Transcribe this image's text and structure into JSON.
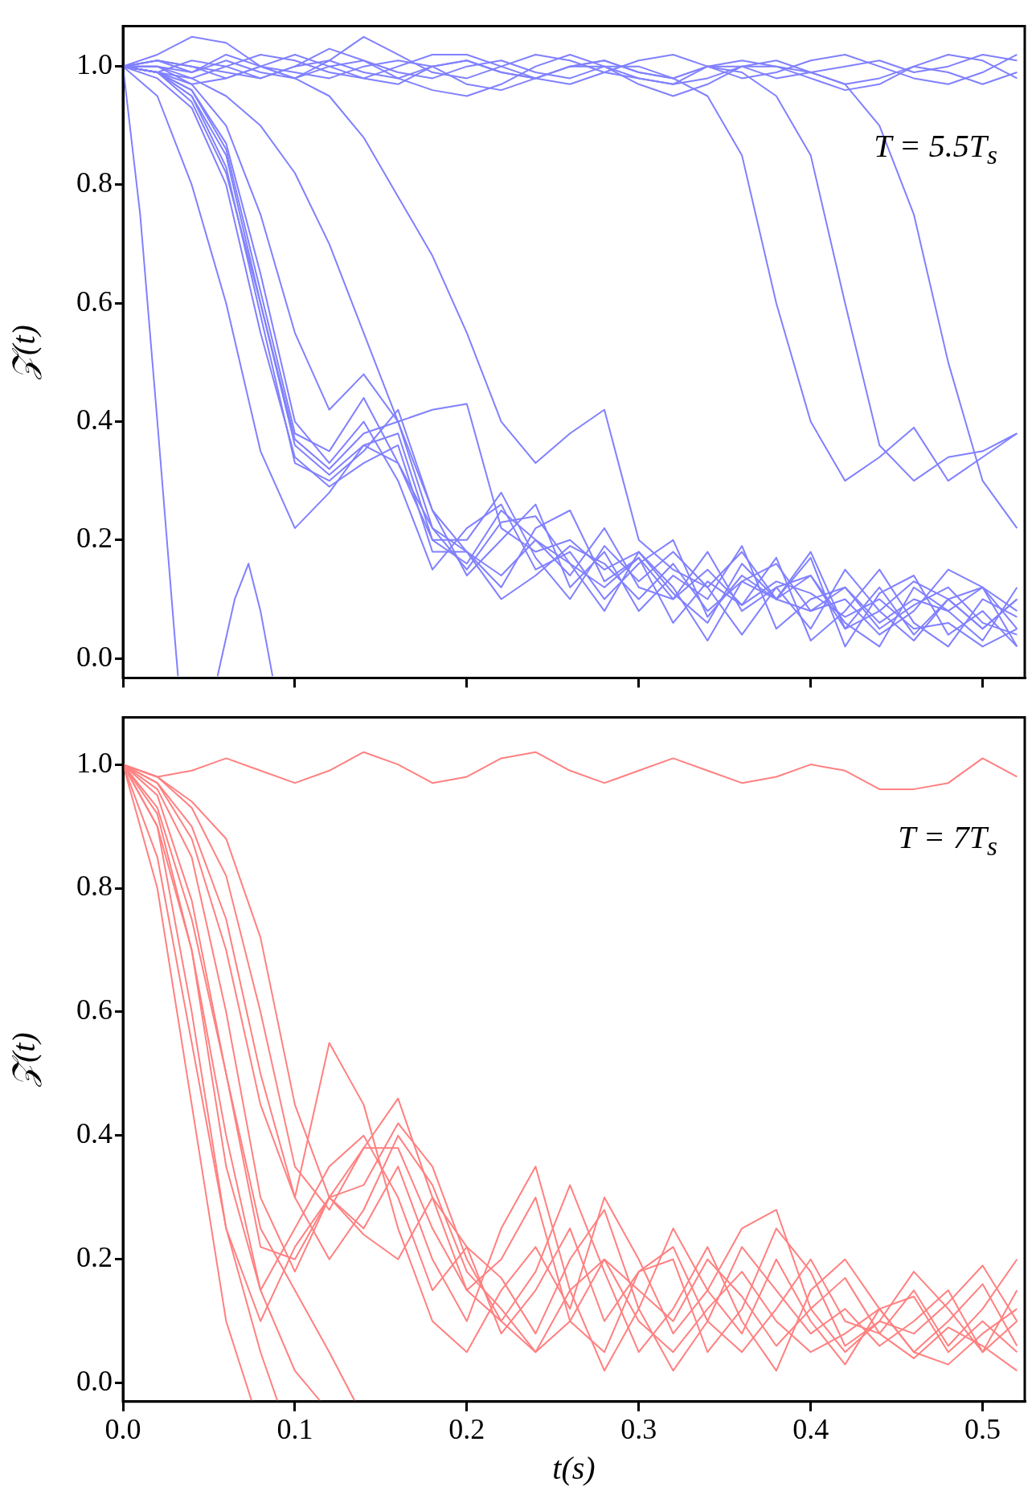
{
  "chart_data": [
    {
      "type": "line",
      "ylabel": "𝒵(t)",
      "annotations": [
        "T = 5.5T$_{s}$"
      ],
      "marker": "none",
      "legend": false,
      "tick_labels": "y",
      "xlim": [
        0,
        0.5245
      ],
      "ylim": [
        -0.033,
        1.068
      ],
      "xticks": [
        {
          "value": 0,
          "label": null
        },
        {
          "value": 0.1,
          "label": null
        },
        {
          "value": 0.2,
          "label": null
        },
        {
          "value": 0.3,
          "label": null
        },
        {
          "value": 0.4,
          "label": null
        },
        {
          "value": 0.5,
          "label": null
        }
      ],
      "yticks": [
        {
          "value": 0,
          "label": "0.0"
        },
        {
          "value": 0.2,
          "label": "0.2"
        },
        {
          "value": 0.4,
          "label": "0.4"
        },
        {
          "value": 0.6,
          "label": "0.6"
        },
        {
          "value": 0.8,
          "label": "0.8"
        },
        {
          "value": 1,
          "label": "1.0"
        }
      ],
      "x": [
        0,
        0.02,
        0.04,
        0.06,
        0.08,
        0.1,
        0.12,
        0.14,
        0.16,
        0.18,
        0.2,
        0.22,
        0.24,
        0.26,
        0.28,
        0.3,
        0.32,
        0.34,
        0.36,
        0.38,
        0.4,
        0.42,
        0.44,
        0.46,
        0.48,
        0.5,
        0.52
      ],
      "series": [
        {
          "color": "#8080ff",
          "x": [
            0,
            0.01,
            0.02,
            0.03,
            0.032,
            0.04,
            0.055,
            0.065,
            0.073,
            0.08,
            0.087
          ],
          "values": [
            1,
            0.75,
            0.4,
            0.04,
            -0.03,
            null,
            -0.03,
            0.1,
            0.16,
            0.08,
            -0.03
          ]
        },
        {
          "color": "#8080ff",
          "values": [
            1,
            0.99,
            0.95,
            0.85,
            0.6,
            0.36,
            0.31,
            0.36,
            0.38,
            0.2,
            0.16,
            0.25,
            0.2,
            0.14,
            0.22,
            0.12,
            0.1,
            0.18,
            0.08,
            0.12,
            0.05,
            0.15,
            0.08,
            0.03,
            0.1,
            0.05,
            0.1
          ]
        },
        {
          "color": "#8080ff",
          "values": [
            1,
            0.99,
            0.96,
            0.87,
            0.65,
            0.4,
            0.33,
            0.4,
            0.3,
            0.15,
            0.22,
            0.26,
            0.15,
            0.18,
            0.1,
            0.16,
            0.2,
            0.07,
            0.14,
            0.1,
            0.17,
            0.02,
            0.11,
            0.14,
            0.04,
            0.08,
            0.02
          ]
        },
        {
          "color": "#8080ff",
          "values": [
            1,
            0.99,
            0.95,
            0.83,
            0.58,
            0.33,
            0.3,
            0.35,
            0.42,
            0.25,
            0.14,
            0.2,
            0.26,
            0.12,
            0.18,
            0.08,
            0.14,
            0.1,
            0.19,
            0.05,
            0.1,
            0.12,
            0.05,
            0.09,
            0.12,
            0.06,
            0.04
          ]
        },
        {
          "color": "#8080ff",
          "values": [
            1,
            0.98,
            0.93,
            0.8,
            0.55,
            0.34,
            0.29,
            0.33,
            0.36,
            0.18,
            0.18,
            0.12,
            0.22,
            0.25,
            0.13,
            0.17,
            0.06,
            0.13,
            0.09,
            0.17,
            0.03,
            0.08,
            0.15,
            0.06,
            0.02,
            0.1,
            0.07
          ]
        },
        {
          "color": "#8080ff",
          "values": [
            1,
            0.99,
            0.96,
            0.86,
            0.62,
            0.38,
            0.35,
            0.44,
            0.33,
            0.2,
            0.2,
            0.28,
            0.17,
            0.1,
            0.19,
            0.13,
            0.18,
            0.12,
            0.04,
            0.12,
            0.14,
            0.06,
            0.02,
            0.12,
            0.08,
            0.03,
            0.12
          ]
        },
        {
          "color": "#8080ff",
          "values": [
            1,
            0.99,
            0.94,
            0.82,
            0.6,
            0.37,
            0.32,
            0.38,
            0.4,
            0.22,
            0.15,
            0.23,
            0.24,
            0.16,
            0.08,
            0.18,
            0.12,
            0.03,
            0.13,
            0.16,
            0.08,
            0.1,
            0.04,
            0.08,
            0.15,
            0.12,
            0.05
          ]
        },
        {
          "color": "#8080ff",
          "values": [
            1,
            0.95,
            0.8,
            0.6,
            0.35,
            0.22,
            0.28,
            0.36,
            0.33,
            0.22,
            0.18,
            0.14,
            0.2,
            0.16,
            0.12,
            0.17,
            0.1,
            0.15,
            0.09,
            0.13,
            0.11,
            0.07,
            0.1,
            0.05,
            0.06,
            0.02,
            0.05
          ]
        },
        {
          "color": "#8080ff",
          "values": [
            1,
            0.99,
            0.97,
            0.9,
            0.75,
            0.55,
            0.42,
            0.48,
            0.4,
            0.25,
            0.18,
            0.1,
            0.14,
            0.19,
            0.16,
            0.1,
            0.16,
            0.08,
            0.13,
            0.1,
            0.18,
            0.05,
            0.12,
            0.04,
            0.1,
            0.12,
            0.02
          ]
        },
        {
          "color": "#8080ff",
          "values": [
            1,
            1,
            0.98,
            0.95,
            0.9,
            0.82,
            0.7,
            0.55,
            0.4,
            0.42,
            0.43,
            0.22,
            0.18,
            0.2,
            0.15,
            0.18,
            0.11,
            0.06,
            0.16,
            0.1,
            0.14,
            0.05,
            0.08,
            0.13,
            0.1,
            0.05,
            0.1
          ]
        },
        {
          "color": "#8080ff",
          "values": [
            1,
            1,
            0.99,
            1.01,
            0.99,
            0.98,
            0.95,
            0.88,
            0.78,
            0.68,
            0.55,
            0.4,
            0.33,
            0.38,
            0.42,
            0.2,
            0.15,
            0.12,
            0.18,
            0.1,
            0.08,
            0.12,
            0.06,
            0.1,
            0.08,
            0.12,
            0.08
          ]
        },
        {
          "color": "#8080ff",
          "values": [
            1,
            1.01,
            0.99,
            1.02,
            1,
            0.98,
            1,
            1.01,
            0.99,
            0.98,
            1,
            1.01,
            0.99,
            0.98,
            1,
            1,
            0.98,
            0.95,
            0.85,
            0.6,
            0.4,
            0.3,
            0.34,
            0.39,
            0.3,
            0.34,
            0.38
          ]
        },
        {
          "color": "#8080ff",
          "values": [
            1,
            0.99,
            1.01,
            1,
            0.98,
            1,
            1.01,
            0.99,
            0.98,
            1,
            1.01,
            0.99,
            0.98,
            1,
            1.01,
            0.99,
            0.98,
            1,
            0.99,
            0.95,
            0.85,
            0.6,
            0.36,
            0.3,
            0.34,
            0.35,
            0.38
          ]
        },
        {
          "color": "#8080ff",
          "values": [
            1,
            1.01,
            1,
            0.98,
            1,
            1.02,
            1,
            0.98,
            0.97,
            1,
            1.01,
            0.99,
            0.98,
            1,
            1.01,
            0.99,
            0.98,
            1,
            1,
            0.98,
            0.99,
            0.97,
            0.9,
            0.75,
            0.5,
            0.3,
            0.22
          ]
        },
        {
          "color": "#8080ff",
          "values": [
            1,
            1.02,
            1.05,
            1.04,
            1,
            0.98,
            1.01,
            1.05,
            1.02,
            0.99,
            0.98,
            1,
            1.02,
            1.01,
            0.99,
            0.98,
            0.97,
            1,
            1.01,
            1,
            0.99,
            1,
            1.01,
            0.99,
            1,
            1.02,
            1.01
          ]
        },
        {
          "color": "#8080ff",
          "values": [
            1,
            1,
            0.97,
            0.98,
            1,
            0.99,
            0.98,
            1,
            1.01,
            1,
            0.97,
            0.96,
            0.98,
            1,
            1,
            0.98,
            0.97,
            0.98,
            1,
            1,
            0.98,
            0.96,
            0.97,
            1,
            1.02,
            1.01,
            0.98
          ]
        },
        {
          "color": "#8080ff",
          "values": [
            1,
            1.01,
            1,
            0.99,
            0.98,
            1,
            1.03,
            1.01,
            0.98,
            0.96,
            0.95,
            0.97,
            1,
            1.02,
            1,
            0.97,
            0.95,
            0.97,
            1,
            1.01,
            0.99,
            0.97,
            0.98,
            1,
            0.99,
            0.97,
            0.99
          ]
        },
        {
          "color": "#8080ff",
          "values": [
            1,
            0.99,
            0.98,
            1,
            1.02,
            1.01,
            0.99,
            0.98,
            1,
            1.02,
            1.02,
            1,
            0.98,
            0.97,
            0.99,
            1.01,
            1.02,
            1,
            0.98,
            0.99,
            1.01,
            1.02,
            1,
            0.98,
            0.97,
            0.99,
            1.02
          ]
        }
      ]
    },
    {
      "type": "line",
      "xlabel": "t(s)",
      "ylabel": "𝒵(t)",
      "annotations": [
        "T = 7T$_{s}$"
      ],
      "marker": "none",
      "legend": false,
      "xlim": [
        0,
        0.5245
      ],
      "ylim": [
        -0.03,
        1.076
      ],
      "xticks": [
        {
          "value": 0,
          "label": "0.0"
        },
        {
          "value": 0.1,
          "label": "0.1"
        },
        {
          "value": 0.2,
          "label": "0.2"
        },
        {
          "value": 0.3,
          "label": "0.3"
        },
        {
          "value": 0.4,
          "label": "0.4"
        },
        {
          "value": 0.5,
          "label": "0.5"
        }
      ],
      "yticks": [
        {
          "value": 0,
          "label": "0.0"
        },
        {
          "value": 0.2,
          "label": "0.2"
        },
        {
          "value": 0.4,
          "label": "0.4"
        },
        {
          "value": 0.6,
          "label": "0.6"
        },
        {
          "value": 0.8,
          "label": "0.8"
        },
        {
          "value": 1,
          "label": "1.0"
        }
      ],
      "x": [
        0,
        0.02,
        0.04,
        0.06,
        0.08,
        0.1,
        0.12,
        0.14,
        0.16,
        0.18,
        0.2,
        0.22,
        0.24,
        0.26,
        0.28,
        0.3,
        0.32,
        0.34,
        0.36,
        0.38,
        0.4,
        0.42,
        0.44,
        0.46,
        0.48,
        0.5,
        0.52
      ],
      "series": [
        {
          "color": "#ff8080",
          "values": [
            1,
            0.98,
            0.99,
            1.01,
            0.99,
            0.97,
            0.99,
            1.02,
            1,
            0.97,
            0.98,
            1.01,
            1.02,
            0.99,
            0.97,
            0.99,
            1.01,
            0.99,
            0.97,
            0.98,
            1,
            0.99,
            0.96,
            0.96,
            0.97,
            1.01,
            0.98
          ]
        },
        {
          "color": "#ff8080",
          "x": [
            0,
            0.02,
            0.04,
            0.06,
            0.075
          ],
          "values": [
            1,
            0.8,
            0.45,
            0.1,
            -0.03
          ]
        },
        {
          "color": "#ff8080",
          "x": [
            0,
            0.02,
            0.04,
            0.06,
            0.08,
            0.09
          ],
          "values": [
            1,
            0.85,
            0.55,
            0.25,
            0.05,
            -0.03
          ]
        },
        {
          "color": "#ff8080",
          "x": [
            0,
            0.02,
            0.04,
            0.06,
            0.08,
            0.1,
            0.115
          ],
          "values": [
            1,
            0.9,
            0.7,
            0.4,
            0.15,
            0.02,
            -0.03
          ]
        },
        {
          "color": "#ff8080",
          "x": [
            0,
            0.02,
            0.04,
            0.06,
            0.08,
            0.1,
            0.12,
            0.135
          ],
          "values": [
            1,
            0.93,
            0.75,
            0.5,
            0.25,
            0.15,
            0.05,
            -0.03
          ]
        },
        {
          "color": "#ff8080",
          "values": [
            1,
            0.9,
            0.6,
            0.25,
            0.1,
            0.22,
            0.3,
            0.38,
            0.38,
            0.25,
            0.15,
            0.1,
            0.05,
            0.15,
            0.2,
            0.1,
            0.05,
            0.12,
            0.18,
            0.1,
            0.05,
            0.08,
            0.12,
            0.05,
            0.03,
            0.08,
            0.12
          ]
        },
        {
          "color": "#ff8080",
          "values": [
            1,
            0.92,
            0.7,
            0.35,
            0.15,
            0.25,
            0.35,
            0.4,
            0.3,
            0.15,
            0.22,
            0.17,
            0.08,
            0.2,
            0.28,
            0.12,
            0.02,
            0.1,
            0.22,
            0.15,
            0.08,
            0.12,
            0.06,
            0.1,
            0.15,
            0.05,
            0.1
          ]
        },
        {
          "color": "#ff8080",
          "values": [
            1,
            0.95,
            0.78,
            0.5,
            0.22,
            0.2,
            0.3,
            0.32,
            0.42,
            0.35,
            0.2,
            0.1,
            0.18,
            0.32,
            0.18,
            0.05,
            0.12,
            0.22,
            0.1,
            0.02,
            0.15,
            0.2,
            0.12,
            0.05,
            0.1,
            0.16,
            0.06
          ]
        },
        {
          "color": "#ff8080",
          "values": [
            1,
            0.97,
            0.88,
            0.7,
            0.45,
            0.3,
            0.55,
            0.45,
            0.25,
            0.1,
            0.05,
            0.15,
            0.22,
            0.12,
            0.3,
            0.2,
            0.08,
            0.15,
            0.25,
            0.28,
            0.12,
            0.05,
            0.1,
            0.18,
            0.12,
            0.05,
            0.15
          ]
        },
        {
          "color": "#ff8080",
          "values": [
            1,
            0.98,
            0.93,
            0.82,
            0.6,
            0.35,
            0.28,
            0.38,
            0.46,
            0.3,
            0.15,
            0.2,
            0.3,
            0.1,
            0.05,
            0.18,
            0.22,
            0.1,
            0.05,
            0.12,
            0.2,
            0.1,
            0.08,
            0.15,
            0.06,
            0.12,
            0.2
          ]
        },
        {
          "color": "#ff8080",
          "values": [
            1,
            0.98,
            0.94,
            0.88,
            0.72,
            0.45,
            0.3,
            0.25,
            0.35,
            0.2,
            0.1,
            0.25,
            0.35,
            0.15,
            0.02,
            0.12,
            0.25,
            0.15,
            0.08,
            0.2,
            0.1,
            0.03,
            0.12,
            0.14,
            0.05,
            0.1,
            0.05
          ]
        },
        {
          "color": "#ff8080",
          "values": [
            1,
            0.97,
            0.9,
            0.75,
            0.5,
            0.3,
            0.2,
            0.28,
            0.4,
            0.32,
            0.18,
            0.12,
            0.05,
            0.1,
            0.2,
            0.15,
            0.1,
            0.2,
            0.14,
            0.06,
            0.12,
            0.17,
            0.08,
            0.04,
            0.09,
            0.06,
            0.02
          ]
        },
        {
          "color": "#ff8080",
          "values": [
            1,
            0.96,
            0.85,
            0.6,
            0.3,
            0.18,
            0.3,
            0.24,
            0.2,
            0.3,
            0.22,
            0.08,
            0.15,
            0.25,
            0.1,
            0.18,
            0.2,
            0.05,
            0.12,
            0.25,
            0.18,
            0.06,
            0.1,
            0.08,
            0.13,
            0.19,
            0.1
          ]
        }
      ]
    }
  ]
}
